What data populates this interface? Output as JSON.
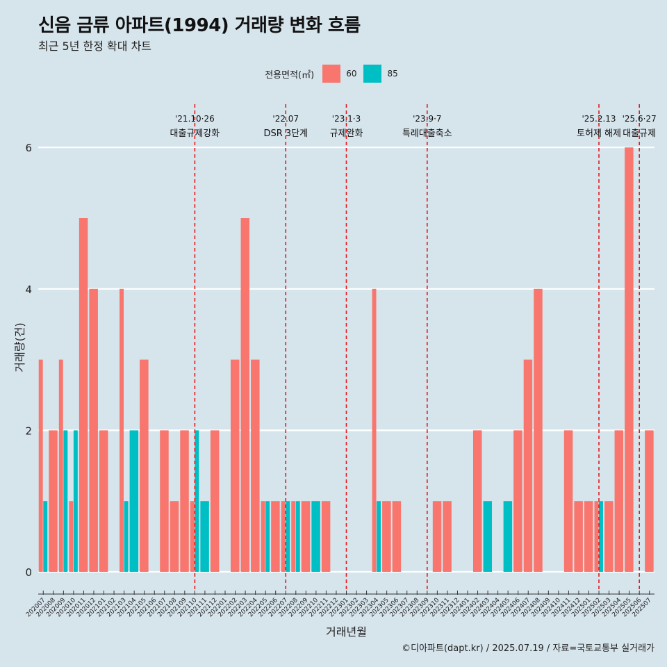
{
  "title": "신음 금류 아파트(1994) 거래량 변화 흐름",
  "subtitle": "최근 5년 한정 확대 차트",
  "footer": "©디아파트(dapt.kr) / 2025.07.19 / 자료=국토교통부 실거래가",
  "legend": {
    "title": "전용면적(㎡)",
    "items": [
      {
        "label": "60",
        "color": "#F8766D"
      },
      {
        "label": "85",
        "color": "#00BFC4"
      }
    ]
  },
  "chart_data": {
    "type": "bar",
    "title": "신음 금류 아파트(1994) 거래량 변화 흐름",
    "xlabel": "거래년월",
    "ylabel": "거래량(건)",
    "ylim": [
      0,
      6.3
    ],
    "yticks": [
      0,
      2,
      4,
      6
    ],
    "categories": [
      "202007",
      "202008",
      "202009",
      "202010",
      "202011",
      "202012",
      "202101",
      "202102",
      "202103",
      "202104",
      "202105",
      "202106",
      "202107",
      "202108",
      "202109",
      "202110",
      "202111",
      "202112",
      "202201",
      "202202",
      "202203",
      "202204",
      "202205",
      "202206",
      "202207",
      "202208",
      "202209",
      "202210",
      "202211",
      "202212",
      "202301",
      "202302",
      "202303",
      "202304",
      "202305",
      "202306",
      "202307",
      "202308",
      "202309",
      "202310",
      "202311",
      "202312",
      "202401",
      "202402",
      "202403",
      "202404",
      "202405",
      "202406",
      "202407",
      "202408",
      "202409",
      "202410",
      "202411",
      "202412",
      "202501",
      "202502",
      "202503",
      "202504",
      "202505",
      "202506",
      "202507"
    ],
    "series": [
      {
        "name": "60",
        "color": "#F8766D",
        "values": [
          3,
          2,
          3,
          1,
          5,
          4,
          2,
          0,
          4,
          0,
          3,
          0,
          2,
          1,
          2,
          1,
          0,
          2,
          0,
          3,
          5,
          3,
          1,
          1,
          1,
          1,
          1,
          0,
          1,
          0,
          0,
          0,
          0,
          4,
          1,
          1,
          0,
          0,
          0,
          1,
          1,
          0,
          0,
          2,
          0,
          0,
          0,
          2,
          3,
          4,
          0,
          0,
          2,
          1,
          1,
          1,
          1,
          2,
          6,
          0,
          2
        ]
      },
      {
        "name": "85",
        "color": "#00BFC4",
        "values": [
          1,
          0,
          2,
          2,
          0,
          0,
          0,
          0,
          1,
          2,
          0,
          0,
          0,
          0,
          0,
          2,
          1,
          0,
          0,
          0,
          0,
          0,
          1,
          0,
          1,
          1,
          0,
          1,
          0,
          0,
          0,
          0,
          0,
          1,
          0,
          0,
          0,
          0,
          0,
          0,
          0,
          0,
          0,
          0,
          1,
          0,
          1,
          0,
          0,
          0,
          0,
          0,
          0,
          0,
          0,
          1,
          0,
          0,
          0,
          0,
          0
        ]
      }
    ],
    "annotations": [
      {
        "category": "202110",
        "date": "'21.10·26",
        "label": "대출규제강화"
      },
      {
        "category": "202207",
        "date": "'22.07",
        "label": "DSR 3단계"
      },
      {
        "category": "202301",
        "date": "'23.1·3",
        "label": "규제완화"
      },
      {
        "category": "202309",
        "date": "'23.9·7",
        "label": "특례대출축소"
      },
      {
        "category": "202502",
        "date": "'25.2.13",
        "label": "토허제 해제"
      },
      {
        "category": "202506",
        "date": "'25.6·27",
        "label": "대출규제"
      }
    ]
  }
}
